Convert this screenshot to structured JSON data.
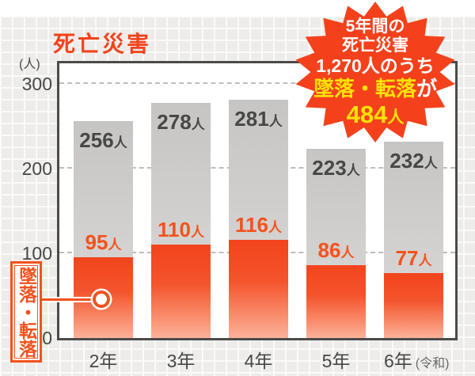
{
  "title": "死亡災害",
  "y_axis": {
    "unit": "(人)"
  },
  "callout": {
    "label": "墜落・転落"
  },
  "burst": {
    "line1": "5年間の",
    "line2": "死亡災害",
    "line3": "1,270人のうち",
    "line4_highlight": "墜落・転落",
    "line4_suffix": "が",
    "line5_value": "484",
    "line5_unit": "人"
  },
  "chart_data": {
    "type": "bar",
    "title": "死亡災害",
    "ylabel": "(人)",
    "unit_suffix": "人",
    "categories": [
      "2年",
      "3年",
      "4年",
      "5年",
      "6年"
    ],
    "category_note": "(令和)",
    "series": [
      {
        "name": "死亡災害",
        "color": "#cbcac9",
        "values": [
          256,
          278,
          281,
          223,
          232
        ]
      },
      {
        "name": "墜落・転落",
        "color": "#f2441c",
        "values": [
          95,
          110,
          116,
          86,
          77
        ]
      }
    ],
    "ylim": [
      0,
      300
    ],
    "yticks": [
      0,
      100,
      200,
      300
    ],
    "grid": "dashed",
    "legend_position": "left-callout"
  },
  "colors": {
    "accent": "#f4421a",
    "highlight_yellow": "#ffe204",
    "bar_gray": "#cbcac9",
    "bar_orange": "#f2441c",
    "text_dark": "#474745"
  }
}
